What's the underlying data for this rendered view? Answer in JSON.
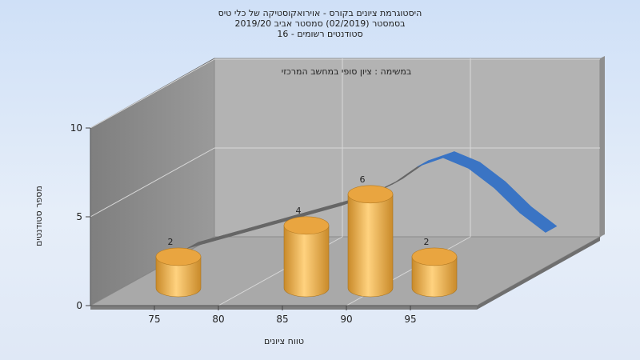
{
  "chart_data": {
    "type": "bar",
    "title_lines": [
      "היסטוגרמת ציונים בקורס - אוירואקוסטיקה של כלי טיס",
      "בסמסטר  (02/2019)  סמסטר אביב 2019/20",
      "סטודנטים רשומים - 16"
    ],
    "annotation": "במשימה : ציון סופי במחשב המרכזי",
    "xlabel": "טווח ציונים",
    "ylabel": "מספר סטודנטים",
    "x_ticks": [
      "75",
      "80",
      "85",
      "90",
      "95"
    ],
    "y_ticks": [
      "0",
      "5",
      "10"
    ],
    "ylim": [
      0,
      10
    ],
    "xlim": [
      70,
      100
    ],
    "bars": [
      {
        "x": 75,
        "value": 2,
        "label": "2"
      },
      {
        "x": 85,
        "value": 4,
        "label": "4"
      },
      {
        "x": 90,
        "value": 6,
        "label": "6"
      },
      {
        "x": 95,
        "value": 2,
        "label": "2"
      }
    ],
    "curve": {
      "x": [
        70,
        72,
        74,
        76,
        78,
        80,
        82,
        84,
        86,
        88,
        90,
        92,
        94,
        96,
        98
      ],
      "y": [
        0.2,
        0.6,
        1.0,
        1.4,
        1.8,
        2.2,
        2.6,
        3.1,
        3.8,
        4.8,
        5.3,
        4.7,
        3.6,
        2.2,
        1.1
      ]
    },
    "colors": {
      "bar_light": "#ffd27f",
      "bar_dark": "#c98a2a",
      "bar_top": "#e9a540",
      "curve_front": "#3a74c4",
      "curve_back": "#666666",
      "floor": "#a8a8a8",
      "back_wall": "#b3b3b3",
      "side_wall": "#8a8a8a"
    }
  }
}
